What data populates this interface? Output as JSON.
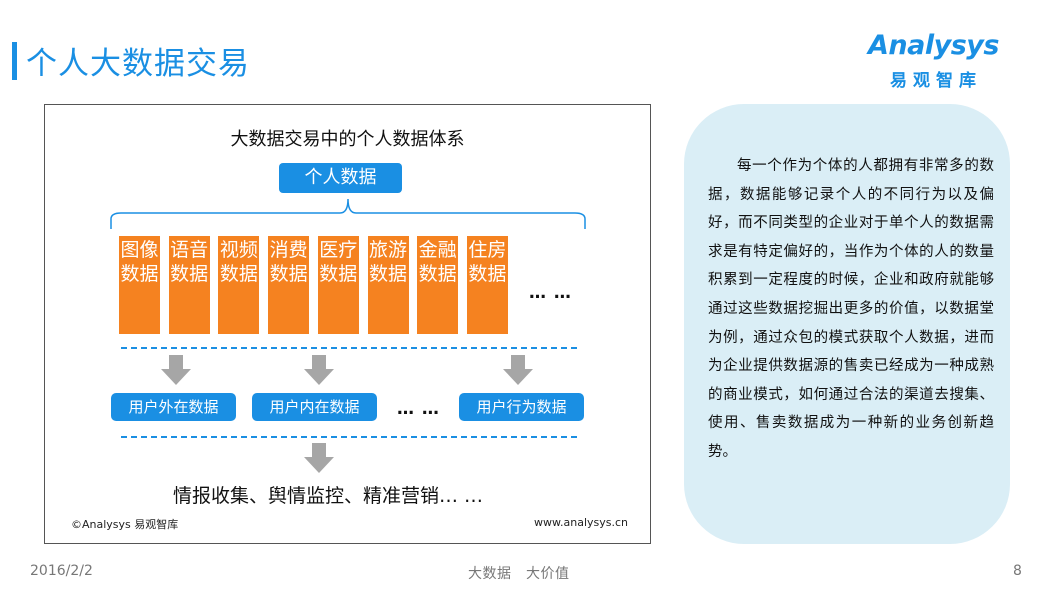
{
  "slide": {
    "title": "个人大数据交易",
    "date": "2016/2/2",
    "footer_center": "大数据　大价值",
    "page_number": "8"
  },
  "logo": {
    "wordmark": "Analysys",
    "chinese": "易观智库",
    "color": "#1a8fe3"
  },
  "diagram": {
    "title": "大数据交易中的个人数据体系",
    "root": "个人数据",
    "categories": [
      "图像数据",
      "语音数据",
      "视频数据",
      "消费数据",
      "医疗数据",
      "旅游数据",
      "金融数据",
      "住房数据"
    ],
    "categories_more": "… …",
    "subgroups": [
      "用户外在数据",
      "用户内在数据",
      "用户行为数据"
    ],
    "subgroups_more": "… …",
    "outcome": "情报收集、舆情监控、精准营销… …",
    "copyright": "©Analysys 易观智库",
    "website": "www.analysys.cn",
    "colors": {
      "primary": "#1a8fe3",
      "category": "#f58220",
      "arrow": "#a6a6a6"
    }
  },
  "panel": {
    "text": "每一个作为个体的人都拥有非常多的数据，数据能够记录个人的不同行为以及偏好，而不同类型的企业对于单个人的数据需求是有特定偏好的，当作为个体的人的数量积累到一定程度的时候，企业和政府就能够通过这些数据挖掘出更多的价值，以数据堂为例，通过众包的模式获取个人数据，进而为企业提供数据源的售卖已经成为一种成熟的商业模式，如何通过合法的渠道去搜集、使用、售卖数据成为一种新的业务创新趋势。",
    "background": "#daeef6"
  }
}
